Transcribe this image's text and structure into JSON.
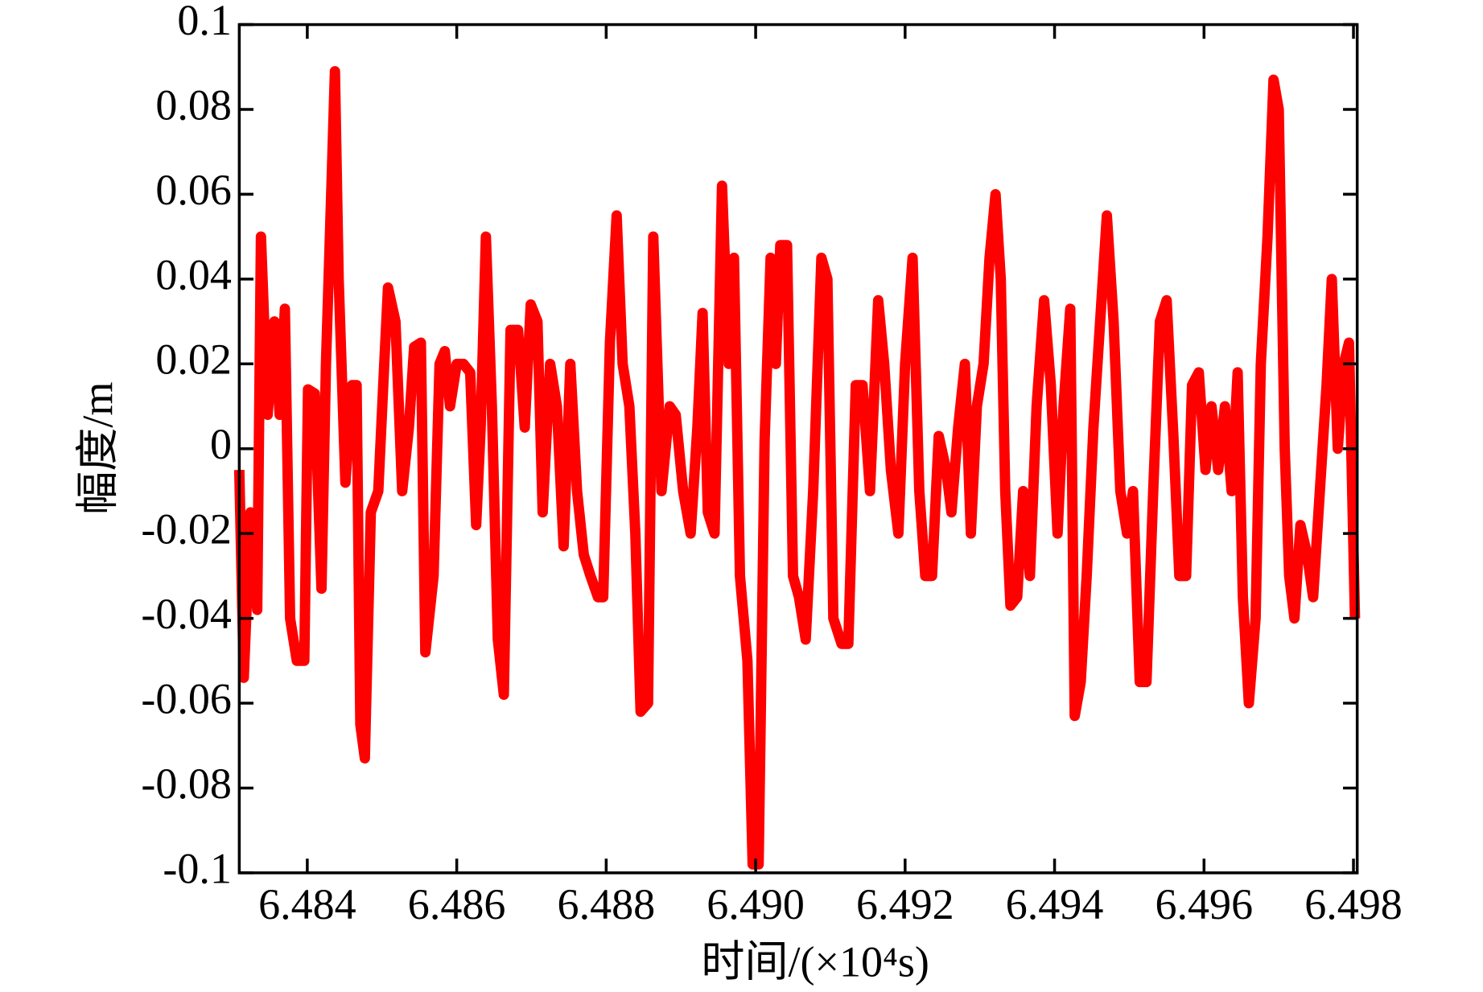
{
  "chart_data": {
    "type": "line",
    "xlabel": "时间/(×10⁴s)",
    "ylabel": "幅度/m",
    "xlim": [
      6.48309,
      6.49805
    ],
    "ylim": [
      -0.1,
      0.1
    ],
    "xticks": [
      6.484,
      6.486,
      6.488,
      {
        "value": 6.49,
        "label": "6.490"
      },
      6.492,
      6.494,
      6.496,
      6.498
    ],
    "yticks": [
      0.1,
      0.08,
      0.06,
      0.04,
      0.02,
      0,
      -0.02,
      -0.04,
      -0.06,
      -0.08,
      -0.1
    ],
    "x": [
      6.48309,
      6.48315,
      6.48324,
      6.48333,
      6.48338,
      6.48347,
      6.48356,
      6.48363,
      6.4837,
      6.48377,
      6.48386,
      6.48396,
      6.48401,
      6.4841,
      6.48419,
      6.48425,
      6.48432,
      6.48437,
      6.48442,
      6.48451,
      6.4846,
      6.48466,
      6.48471,
      6.48477,
      6.48485,
      6.48495,
      6.48503,
      6.48508,
      6.48518,
      6.48527,
      6.48536,
      6.48543,
      6.48552,
      6.48558,
      6.48569,
      6.48577,
      6.48584,
      6.48591,
      6.486,
      6.48609,
      6.48618,
      6.48626,
      6.48632,
      6.48639,
      6.48647,
      6.48655,
      6.48663,
      6.48672,
      6.48682,
      6.48691,
      6.48699,
      6.48708,
      6.48715,
      6.48725,
      6.48734,
      6.48743,
      6.48752,
      6.48761,
      6.4877,
      6.48779,
      6.48789,
      6.48796,
      6.48805,
      6.48814,
      6.48822,
      6.48831,
      6.48839,
      6.48846,
      6.48856,
      6.48863,
      6.48874,
      6.48885,
      6.48893,
      6.48903,
      6.48913,
      6.48922,
      6.48929,
      6.48936,
      6.48945,
      6.48955,
      6.48964,
      6.48971,
      6.48979,
      6.48989,
      6.48996,
      6.49004,
      6.49012,
      6.4902,
      6.49027,
      6.49033,
      6.49042,
      6.4905,
      6.49058,
      6.49067,
      6.49077,
      6.49088,
      6.49096,
      6.49104,
      6.49115,
      6.49124,
      6.49134,
      6.49143,
      6.49153,
      6.49164,
      6.49172,
      6.49181,
      6.49191,
      6.492,
      6.4921,
      6.49219,
      6.49227,
      6.49236,
      6.49245,
      6.49255,
      6.49262,
      6.49271,
      6.4928,
      6.49288,
      6.49296,
      6.49305,
      6.49313,
      6.49321,
      6.49328,
      6.49334,
      6.49341,
      6.4935,
      6.49358,
      6.49367,
      6.49376,
      6.49386,
      6.49395,
      6.49404,
      6.49412,
      6.49421,
      6.49427,
      6.49435,
      6.49443,
      6.49452,
      6.49461,
      6.4947,
      6.49479,
      6.49488,
      6.49497,
      6.49505,
      6.49514,
      6.49523,
      6.49532,
      6.49541,
      6.4955,
      6.49559,
      6.49567,
      6.49576,
      6.49584,
      6.49593,
      6.49602,
      6.4961,
      6.49619,
      6.49628,
      6.49637,
      6.49645,
      6.49652,
      6.4966,
      6.49669,
      6.49676,
      6.49685,
      6.49693,
      6.497,
      6.49708,
      6.49714,
      6.49721,
      6.49729,
      6.49738,
      6.49746,
      6.49755,
      6.49764,
      6.49771,
      6.49779,
      6.49787,
      6.49794,
      6.49802
    ],
    "series": [
      {
        "color": "#ff0000",
        "values": [
          -0.005,
          -0.054,
          -0.015,
          -0.038,
          0.05,
          0.008,
          0.03,
          0.008,
          0.033,
          -0.04,
          -0.05,
          -0.05,
          0.014,
          0.013,
          -0.033,
          0.02,
          0.06,
          0.089,
          0.04,
          -0.008,
          0.015,
          0.015,
          -0.065,
          -0.073,
          -0.015,
          -0.01,
          0.02,
          0.038,
          0.03,
          -0.01,
          0.005,
          0.024,
          0.025,
          -0.048,
          -0.03,
          0.02,
          0.023,
          0.01,
          0.02,
          0.02,
          0.018,
          -0.018,
          0.005,
          0.05,
          0.01,
          -0.045,
          -0.058,
          0.028,
          0.028,
          0.005,
          0.034,
          0.03,
          -0.015,
          0.02,
          0.01,
          -0.023,
          0.02,
          -0.01,
          -0.025,
          -0.03,
          -0.035,
          -0.035,
          0.025,
          0.055,
          0.02,
          0.01,
          -0.02,
          -0.062,
          -0.06,
          0.05,
          -0.01,
          0.01,
          0.008,
          -0.01,
          -0.02,
          0.005,
          0.032,
          -0.015,
          -0.02,
          0.062,
          0.02,
          0.045,
          -0.03,
          -0.05,
          -0.098,
          -0.098,
          0.002,
          0.045,
          0.02,
          0.048,
          0.048,
          -0.03,
          -0.035,
          -0.045,
          -0.01,
          0.045,
          0.04,
          -0.04,
          -0.046,
          -0.046,
          0.015,
          0.015,
          -0.01,
          0.035,
          0.02,
          -0.005,
          -0.02,
          0.02,
          0.045,
          -0.01,
          -0.03,
          -0.03,
          0.003,
          -0.005,
          -0.015,
          0.005,
          0.02,
          -0.02,
          0.01,
          0.02,
          0.045,
          0.06,
          0.04,
          -0.01,
          -0.037,
          -0.035,
          -0.01,
          -0.03,
          0.01,
          0.035,
          0.015,
          -0.02,
          0.01,
          0.033,
          -0.063,
          -0.055,
          -0.03,
          0.005,
          0.03,
          0.055,
          0.03,
          -0.01,
          -0.02,
          -0.01,
          -0.055,
          -0.055,
          -0.01,
          0.03,
          0.035,
          0.003,
          -0.03,
          -0.03,
          0.015,
          0.018,
          -0.005,
          0.01,
          -0.005,
          0.01,
          -0.01,
          0.018,
          -0.035,
          -0.06,
          -0.04,
          0.02,
          0.05,
          0.087,
          0.08,
          0.0,
          -0.03,
          -0.04,
          -0.018,
          -0.025,
          -0.035,
          -0.01,
          0.015,
          0.04,
          0.0,
          0.02,
          0.025,
          -0.04
        ]
      }
    ]
  }
}
